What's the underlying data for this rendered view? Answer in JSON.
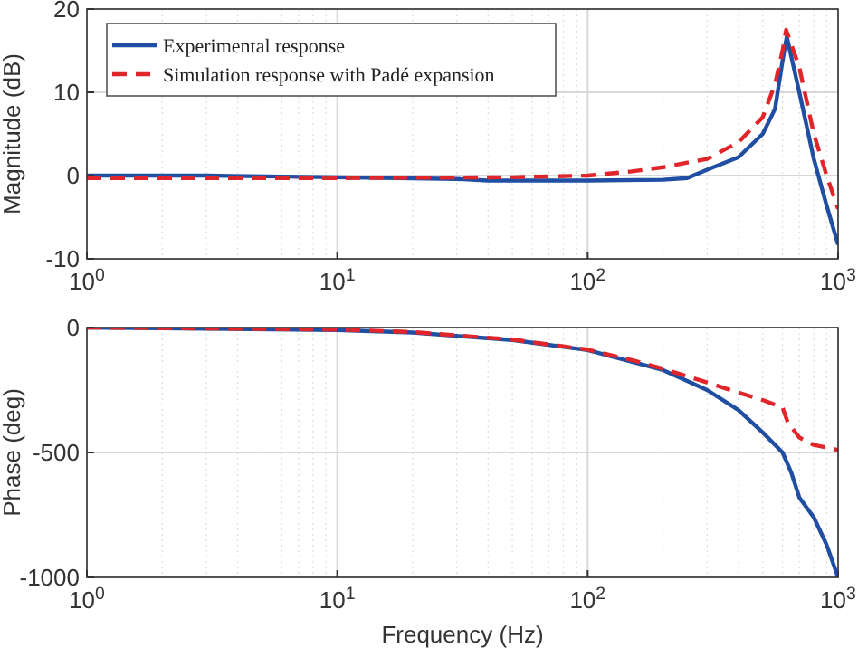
{
  "chart_data": [
    {
      "type": "line",
      "ylabel": "Magnitude (dB)",
      "log": "x",
      "grid": true,
      "legend": "top left",
      "xlim": [
        1,
        1000
      ],
      "ylim": [
        -10,
        20
      ],
      "xticks": [
        {
          "value": 1,
          "label": "10$^{0}$"
        },
        {
          "value": 10,
          "label": "10$^{1}$"
        },
        {
          "value": 100,
          "label": "10$^{2}$"
        },
        {
          "value": 1000,
          "label": "10$^{3}$"
        }
      ],
      "yticks": [
        -10,
        0,
        10,
        20
      ],
      "series": [
        {
          "name": "Experimental response",
          "color": "#1f4ea3",
          "line_style": "solid",
          "x": [
            1,
            3,
            10,
            30,
            40,
            100,
            200,
            250,
            300,
            400,
            500,
            560,
            600,
            624,
            700,
            800,
            900,
            1000
          ],
          "values": [
            0,
            0,
            -0.2,
            -0.4,
            -0.6,
            -0.6,
            -0.5,
            -0.3,
            0.7,
            2.2,
            5,
            8,
            13.8,
            16.7,
            10,
            2,
            -3.6,
            -8.3
          ]
        },
        {
          "name": "Simulation response with Padé expansion",
          "color": "#e0262b",
          "line_style": "dashed",
          "x": [
            1,
            10,
            50,
            100,
            150,
            200,
            300,
            400,
            500,
            560,
            600,
            620,
            700,
            800,
            900,
            1000
          ],
          "values": [
            -0.3,
            -0.3,
            -0.2,
            0,
            0.5,
            1,
            2,
            4,
            7,
            11,
            15,
            17.5,
            13,
            5,
            0,
            -4
          ]
        }
      ]
    },
    {
      "type": "line",
      "xlabel": "Frequency (Hz)",
      "ylabel": "Phase (deg)",
      "log": "x",
      "grid": true,
      "legend": false,
      "xlim": [
        1,
        1000
      ],
      "ylim": [
        -1000,
        0
      ],
      "xticks": [
        {
          "value": 1,
          "label": "10$^{0}$"
        },
        {
          "value": 10,
          "label": "10$^{1}$"
        },
        {
          "value": 100,
          "label": "10$^{2}$"
        },
        {
          "value": 1000,
          "label": "10$^{3}$"
        }
      ],
      "yticks": [
        -1000,
        -500,
        0
      ],
      "series": [
        {
          "color": "#1f4ea3",
          "line_style": "solid",
          "x": [
            1,
            10,
            20,
            50,
            100,
            200,
            300,
            400,
            500,
            600,
            650,
            700,
            800,
            900,
            1000
          ],
          "values": [
            0,
            -10,
            -20,
            -50,
            -90,
            -170,
            -250,
            -330,
            -420,
            -500,
            -580,
            -680,
            -760,
            -870,
            -1000
          ]
        },
        {
          "color": "#e0262b",
          "line_style": "dashed",
          "x": [
            1,
            10,
            20,
            50,
            100,
            150,
            200,
            300,
            400,
            500,
            600,
            630,
            700,
            800,
            1000
          ],
          "values": [
            0,
            -8,
            -18,
            -48,
            -88,
            -130,
            -165,
            -220,
            -260,
            -290,
            -320,
            -380,
            -440,
            -470,
            -490
          ]
        }
      ]
    }
  ]
}
